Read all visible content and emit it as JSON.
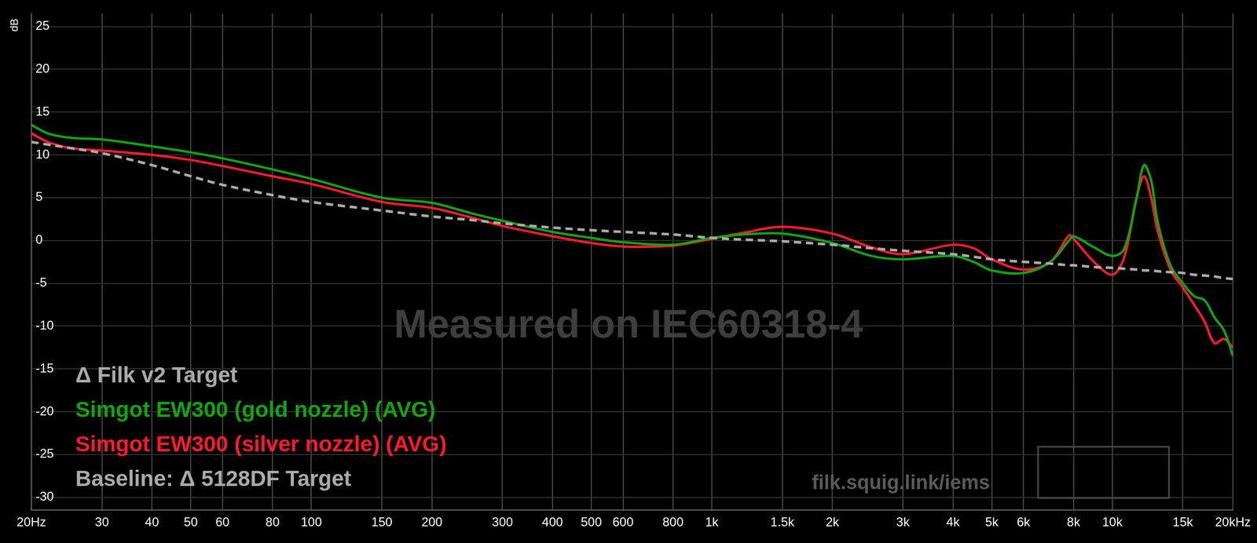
{
  "chart_data": {
    "type": "line",
    "y_label": "dB",
    "log": "x",
    "grid": true,
    "legend": "bottom left",
    "xlim": [
      20,
      20000
    ],
    "xticks": [
      {
        "value": 20,
        "label": "20Hz"
      },
      30,
      40,
      50,
      60,
      80,
      100,
      150,
      200,
      300,
      400,
      500,
      600,
      800,
      {
        "value": 1000,
        "label": "1k"
      },
      {
        "value": 1500,
        "label": "1.5k"
      },
      {
        "value": 2000,
        "label": "2k"
      },
      {
        "value": 3000,
        "label": "3k"
      },
      {
        "value": 4000,
        "label": "4k"
      },
      {
        "value": 5000,
        "label": "5k"
      },
      {
        "value": 6000,
        "label": "6k"
      },
      {
        "value": 8000,
        "label": "8k"
      },
      {
        "value": 10000,
        "label": "10k"
      },
      {
        "value": 15000,
        "label": "15k"
      },
      {
        "value": 20000,
        "label": "20kHz"
      }
    ],
    "ylim": [
      -31.5,
      26.5
    ],
    "yticks": [
      25,
      20,
      15,
      10,
      5,
      0,
      -5,
      -10,
      -15,
      -20,
      -25,
      -30
    ],
    "x": [
      20,
      22,
      25,
      30,
      40,
      50,
      60,
      80,
      100,
      150,
      200,
      250,
      300,
      400,
      500,
      600,
      800,
      1000,
      1200,
      1500,
      2000,
      2500,
      3000,
      4000,
      4500,
      5000,
      6000,
      7000,
      7800,
      8000,
      9000,
      10000,
      10700,
      11500,
      12000,
      12500,
      13000,
      14000,
      15000,
      16000,
      17000,
      18000,
      19000,
      20000
    ],
    "series": [
      {
        "name": "Δ Filk v2 Target",
        "color": "#aaaaaa",
        "line_style": "dashed",
        "values": [
          11.5,
          11.2,
          10.8,
          10.2,
          8.8,
          7.5,
          6.5,
          5.3,
          4.5,
          3.5,
          2.8,
          2.4,
          2.0,
          1.5,
          1.2,
          1.0,
          0.7,
          0.3,
          0.1,
          -0.1,
          -0.5,
          -0.9,
          -1.2,
          -1.6,
          -1.9,
          -2.2,
          -2.5,
          -2.7,
          -2.9,
          -2.9,
          -3.1,
          -3.2,
          -3.3,
          -3.4,
          -3.5,
          -3.5,
          -3.6,
          -3.7,
          -3.8,
          -4.0,
          -4.1,
          -4.2,
          -4.4,
          -4.5
        ]
      },
      {
        "name": "Simgot EW300 (gold nozzle) (AVG)",
        "color": "#13a313",
        "line_style": "solid",
        "values": [
          13.5,
          12.5,
          12.0,
          11.8,
          11.0,
          10.3,
          9.6,
          8.3,
          7.2,
          5.0,
          4.4,
          3.2,
          2.3,
          1.0,
          0.3,
          -0.2,
          -0.5,
          0.3,
          0.7,
          0.8,
          -0.3,
          -1.8,
          -2.2,
          -1.8,
          -2.5,
          -3.5,
          -3.8,
          -2.5,
          0.0,
          0.5,
          -0.8,
          -1.8,
          -1.0,
          5.0,
          8.8,
          7.0,
          2.0,
          -3.0,
          -5.0,
          -6.5,
          -7.0,
          -9.0,
          -10.5,
          -13.5
        ]
      },
      {
        "name": "Simgot EW300 (silver nozzle) (AVG)",
        "color": "#ff1a2e",
        "line_style": "solid",
        "values": [
          12.5,
          11.5,
          10.8,
          10.5,
          10.0,
          9.4,
          8.7,
          7.5,
          6.6,
          4.5,
          3.8,
          2.7,
          1.7,
          0.5,
          -0.3,
          -0.7,
          -0.6,
          0.2,
          0.9,
          1.6,
          0.8,
          -0.8,
          -1.6,
          -0.5,
          -0.9,
          -2.2,
          -3.4,
          -2.5,
          0.6,
          0.2,
          -2.5,
          -4.0,
          -2.0,
          5.0,
          7.5,
          5.0,
          1.0,
          -3.5,
          -5.5,
          -7.5,
          -9.5,
          -12.0,
          -11.5,
          -12.5
        ]
      }
    ],
    "annotations": [
      {
        "text": "Baseline: Δ 5128DF Target"
      },
      {
        "text": "Measured on IEC60318-4"
      },
      {
        "text": "filk.squig.link/iems"
      }
    ]
  }
}
